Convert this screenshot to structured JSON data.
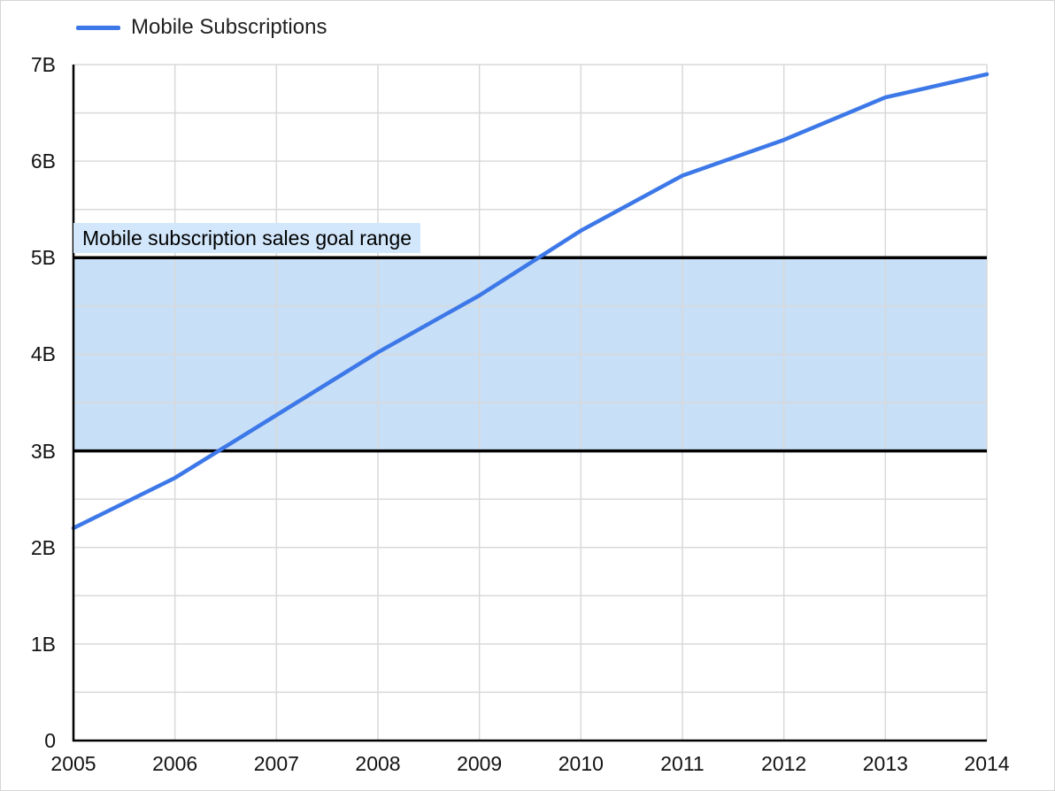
{
  "legend": {
    "label": "Mobile Subscriptions"
  },
  "annotation": {
    "label": "Mobile subscription sales goal range"
  },
  "colors": {
    "line": "#3d78e8",
    "band_fill": "#c7dff7",
    "band_border": "#000000",
    "annotation_bg": "#d2e7fb",
    "grid": "#d9d9d9",
    "axis": "#000000",
    "text": "#131313"
  },
  "chart_data": {
    "type": "line",
    "title": "",
    "xlabel": "",
    "ylabel": "",
    "x": [
      2005,
      2006,
      2007,
      2008,
      2009,
      2010,
      2011,
      2012,
      2013,
      2014
    ],
    "series": [
      {
        "name": "Mobile Subscriptions",
        "values_billions": [
          2.2,
          2.72,
          3.37,
          4.02,
          4.61,
          5.28,
          5.85,
          6.22,
          6.66,
          6.9
        ]
      }
    ],
    "x_ticks": [
      "2005",
      "2006",
      "2007",
      "2008",
      "2009",
      "2010",
      "2011",
      "2012",
      "2013",
      "2014"
    ],
    "y_ticks": [
      "0",
      "1B",
      "2B",
      "3B",
      "4B",
      "5B",
      "6B",
      "7B"
    ],
    "ylim": [
      0,
      7
    ],
    "tick_step_y": 1,
    "grid_step_y": 0.5,
    "grid": true,
    "legend_position": "top-left",
    "band": {
      "from": 3,
      "to": 5,
      "label": "Mobile subscription sales goal range"
    }
  }
}
